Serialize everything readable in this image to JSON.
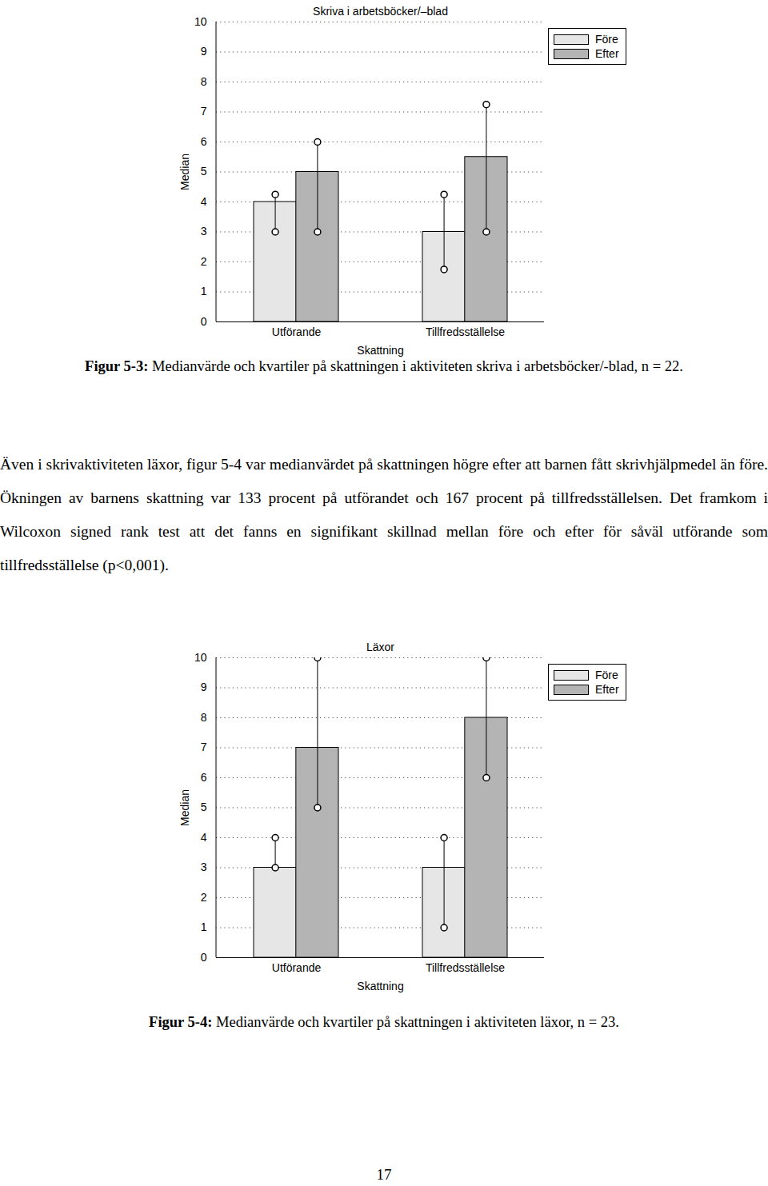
{
  "chart_data": [
    {
      "type": "bar",
      "title": "Skriva i arbetsböcker/–blad",
      "x_label": "Skattning",
      "y_label": "Median",
      "categories": [
        "Utförande",
        "Tillfredsställelse"
      ],
      "series": [
        {
          "name": "Före",
          "color": "#e6e6e6",
          "values": [
            4,
            3
          ],
          "q1": [
            3,
            1.75
          ],
          "q3": [
            4.25,
            4.25
          ]
        },
        {
          "name": "Efter",
          "color": "#b4b4b4",
          "values": [
            5,
            5.5
          ],
          "q1": [
            3,
            3
          ],
          "q3": [
            6,
            7.25
          ]
        }
      ],
      "ylim": [
        0,
        10
      ],
      "yticks": [
        0,
        1,
        2,
        3,
        4,
        5,
        6,
        7,
        8,
        9,
        10
      ],
      "grid": true,
      "legend": "top-right"
    },
    {
      "type": "bar",
      "title": "Läxor",
      "x_label": "Skattning",
      "y_label": "Median",
      "categories": [
        "Utförande",
        "Tillfredsställelse"
      ],
      "series": [
        {
          "name": "Före",
          "color": "#e6e6e6",
          "values": [
            3,
            3
          ],
          "q1": [
            3,
            1
          ],
          "q3": [
            4,
            4
          ]
        },
        {
          "name": "Efter",
          "color": "#b4b4b4",
          "values": [
            7,
            8
          ],
          "q1": [
            5,
            6
          ],
          "q3": [
            10,
            10
          ]
        }
      ],
      "ylim": [
        0,
        10
      ],
      "yticks": [
        0,
        1,
        2,
        3,
        4,
        5,
        6,
        7,
        8,
        9,
        10
      ],
      "grid": true,
      "legend": "top-right"
    }
  ],
  "page": {
    "captions": [
      {
        "label": "Figur 5-3:",
        "text": " Medianvärde och kvartiler på skattningen i aktiviteten skriva i arbetsböcker/-blad, n = 22."
      },
      {
        "label": "Figur 5-4:",
        "text": " Medianvärde och kvartiler på skattningen i aktiviteten läxor, n = 23."
      }
    ],
    "paragraph": "Även i skrivaktiviteten läxor, figur 5-4 var medianvärdet på skattningen högre efter att barnen fått skrivhjälpmedel än före. Ökningen av barnens skattning var 133 procent på utförandet och 167 procent på tillfredsställelsen. Det framkom i Wilcoxon signed rank test att det fanns en signifikant skillnad mellan före och efter för såväl utförande som tillfredsställelse (p<0,001).",
    "page_number": "17"
  }
}
